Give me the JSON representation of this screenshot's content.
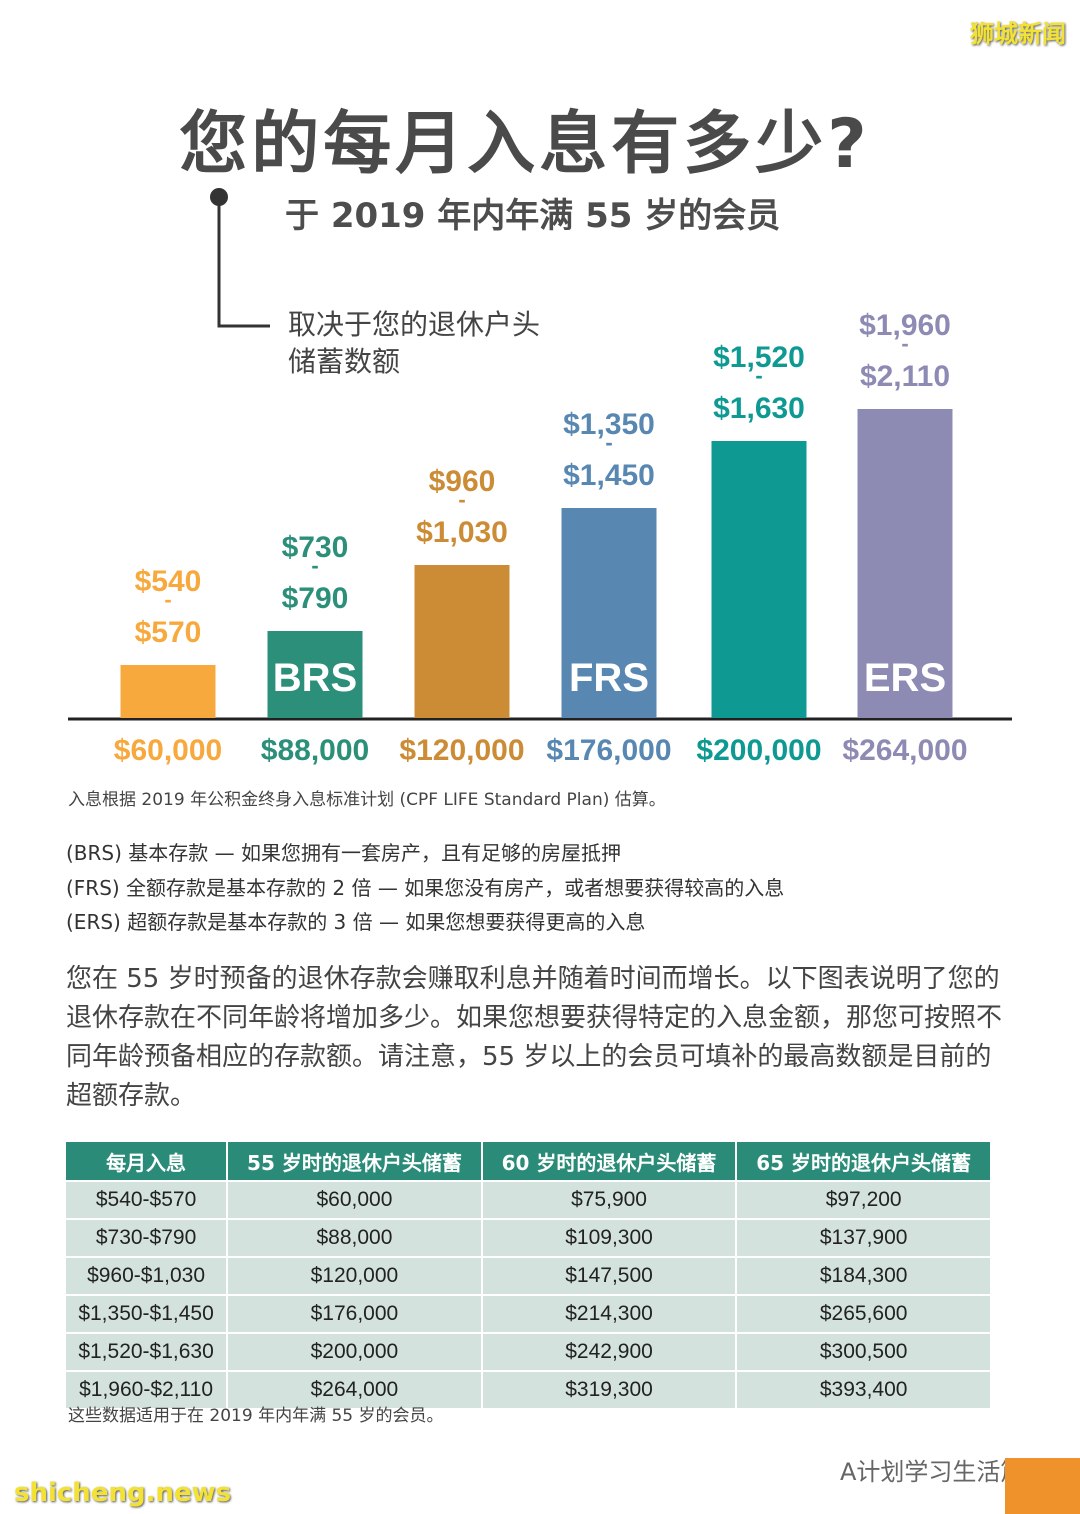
{
  "watermark_top": "狮城新闻",
  "title": "您的每月入息有多少?",
  "subtitle": "于 2019 年内年满 55 岁的会员",
  "callout": [
    "取决于您的退休户头",
    "储蓄数额"
  ],
  "bars": [
    {
      "income_low": "$540",
      "dash": "-",
      "income_high": "$570",
      "savings": "$60,000",
      "color": "#f7a93e"
    },
    {
      "income_low": "$730",
      "dash": "-",
      "income_high": "$790",
      "savings": "$88,000",
      "tag": "BRS",
      "color": "#2b8f7a"
    },
    {
      "income_low": "$960",
      "dash": "-",
      "income_high": "$1,030",
      "savings": "$120,000",
      "color": "#cc8c35"
    },
    {
      "income_low": "$1,350",
      "dash": "-",
      "income_high": "$1,450",
      "savings": "$176,000",
      "tag": "FRS",
      "color": "#5887b2"
    },
    {
      "income_low": "$1,520",
      "dash": "-",
      "income_high": "$1,630",
      "savings": "$200,000",
      "color": "#0e9a92"
    },
    {
      "income_low": "$1,960",
      "dash": "-",
      "income_high": "$2,110",
      "savings": "$264,000",
      "tag": "ERS",
      "color": "#8d8bb3"
    }
  ],
  "chart_note": "入息根据 2019 年公积金终身入息标准计划 (CPF LIFE Standard Plan) 估算。",
  "definitions": [
    "(BRS) 基本存款 — 如果您拥有一套房产，且有足够的房屋抵押",
    "(FRS) 全额存款是基本存款的 2 倍 — 如果您没有房产，或者想要获得较高的入息",
    "(ERS) 超额存款是基本存款的 3 倍 — 如果您想要获得更高的入息"
  ],
  "paragraph": "您在 55 岁时预备的退休存款会赚取利息并随着时间而增长。以下图表说明了您的退休存款在不同年龄将增加多少。如果您想要获得特定的入息金额，那您可按照不同年龄预备相应的存款额。请注意，55 岁以上的会员可填补的最高数额是目前的超额存款。",
  "table": {
    "header": [
      "每月入息",
      "55 岁时的退休户头储蓄",
      "60 岁时的退休户头储蓄",
      "65 岁时的退休户头储蓄"
    ],
    "rows": [
      [
        "$540-$570",
        "$60,000",
        "$75,900",
        "$97,200"
      ],
      [
        "$730-$790",
        "$88,000",
        "$109,300",
        "$137,900"
      ],
      [
        "$960-$1,030",
        "$120,000",
        "$147,500",
        "$184,300"
      ],
      [
        "$1,350-$1,450",
        "$176,000",
        "$214,300",
        "$265,600"
      ],
      [
        "$1,520-$1,630",
        "$200,000",
        "$242,900",
        "$300,500"
      ],
      [
        "$1,960-$2,110",
        "$264,000",
        "$319,300",
        "$393,400"
      ]
    ]
  },
  "table_note": "这些数据适用于在 2019 年内年满 55 岁的会员。",
  "watermark_bottom_left": "shicheng.news",
  "watermark_bottom_right": "A计划学习生活篇"
}
